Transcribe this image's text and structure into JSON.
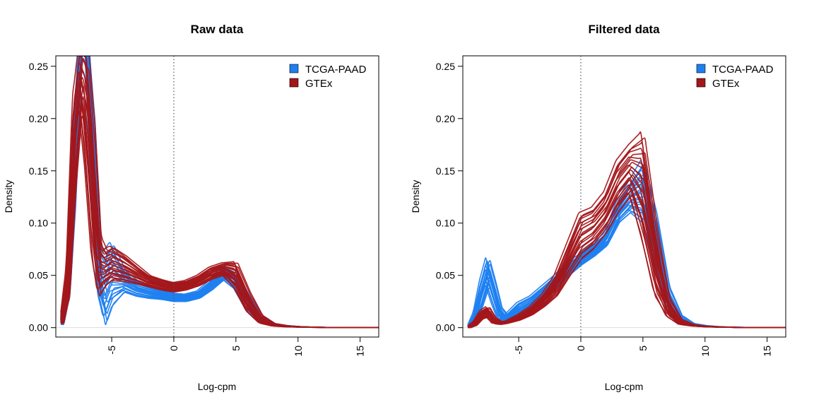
{
  "colors": {
    "tcga": "#1E7FF0",
    "gtex": "#A3161A",
    "zero_line": "#555555",
    "axis": "#000000"
  },
  "chart_data": [
    {
      "type": "line",
      "title": "Raw data",
      "xlabel": "Log-cpm",
      "ylabel": "Density",
      "xlim": [
        -9.5,
        16.5
      ],
      "ylim": [
        -0.009,
        0.26
      ],
      "xticks": [
        -5,
        0,
        5,
        10,
        15
      ],
      "xtick_labels": [
        "-5",
        "0",
        "5",
        "10",
        "15"
      ],
      "yticks": [
        0.0,
        0.05,
        0.1,
        0.15,
        0.2,
        0.25
      ],
      "ytick_labels": [
        "0.00",
        "0.05",
        "0.10",
        "0.15",
        "0.20",
        "0.25"
      ],
      "reference_line": {
        "x": 0,
        "style": "dotted"
      },
      "legend": {
        "position": "top-right",
        "entries": [
          "TCGA-PAAD",
          "GTEx"
        ]
      },
      "grid": false,
      "series": [
        {
          "name": "TCGA-PAAD",
          "color": "#1E7FF0",
          "x": [
            -9,
            -8.5,
            -8,
            -7.5,
            -7,
            -6.5,
            -6,
            -5.5,
            -5,
            -4,
            -3,
            -2,
            -1,
            0,
            1,
            2,
            3,
            4,
            5,
            6,
            7,
            8,
            9,
            10,
            11,
            12,
            13,
            14,
            15,
            16.5
          ],
          "y_low": [
            0.003,
            0.03,
            0.12,
            0.27,
            0.27,
            0.12,
            0.03,
            0.003,
            0.02,
            0.034,
            0.03,
            0.028,
            0.027,
            0.025,
            0.025,
            0.028,
            0.036,
            0.046,
            0.036,
            0.015,
            0.005,
            0.002,
            0.001,
            0.001,
            0.0005,
            0.0003,
            0.0002,
            0.0001,
            0.0,
            0.0
          ],
          "y_high": [
            0.006,
            0.05,
            0.18,
            0.27,
            0.27,
            0.2,
            0.08,
            0.073,
            0.082,
            0.055,
            0.045,
            0.04,
            0.036,
            0.033,
            0.032,
            0.035,
            0.045,
            0.058,
            0.052,
            0.03,
            0.012,
            0.004,
            0.002,
            0.001,
            0.0005,
            0.0003,
            0.0002,
            0.0001,
            0.0,
            0.0
          ]
        },
        {
          "name": "GTEx",
          "color": "#A3161A",
          "x": [
            -9,
            -8.5,
            -8,
            -7.5,
            -7,
            -6.5,
            -6,
            -5.5,
            -5,
            -4,
            -3,
            -2,
            -1,
            0,
            1,
            2,
            3,
            4,
            5,
            6,
            7,
            8,
            9,
            10,
            11,
            12,
            13,
            14,
            15,
            16.5
          ],
          "y_low": [
            0.004,
            0.03,
            0.13,
            0.205,
            0.14,
            0.06,
            0.03,
            0.04,
            0.045,
            0.044,
            0.042,
            0.039,
            0.036,
            0.034,
            0.036,
            0.04,
            0.046,
            0.05,
            0.036,
            0.014,
            0.004,
            0.0015,
            0.0008,
            0.0005,
            0.0003,
            0.0002,
            0.0001,
            0.0,
            0.0,
            0.0
          ],
          "y_high": [
            0.008,
            0.06,
            0.22,
            0.27,
            0.27,
            0.2,
            0.09,
            0.075,
            0.078,
            0.07,
            0.06,
            0.05,
            0.046,
            0.043,
            0.045,
            0.05,
            0.058,
            0.062,
            0.063,
            0.035,
            0.012,
            0.004,
            0.002,
            0.001,
            0.0005,
            0.0003,
            0.0001,
            0.0,
            0.0,
            0.0
          ]
        }
      ]
    },
    {
      "type": "line",
      "title": "Filtered data",
      "xlabel": "Log-cpm",
      "ylabel": "Density",
      "xlim": [
        -9.5,
        16.5
      ],
      "ylim": [
        -0.009,
        0.26
      ],
      "xticks": [
        -5,
        0,
        5,
        10,
        15
      ],
      "xtick_labels": [
        "-5",
        "0",
        "5",
        "10",
        "15"
      ],
      "yticks": [
        0.0,
        0.05,
        0.1,
        0.15,
        0.2,
        0.25
      ],
      "ytick_labels": [
        "0.00",
        "0.05",
        "0.10",
        "0.15",
        "0.20",
        "0.25"
      ],
      "reference_line": {
        "x": 0,
        "style": "dotted"
      },
      "legend": {
        "position": "top-right",
        "entries": [
          "TCGA-PAAD",
          "GTEx"
        ]
      },
      "grid": false,
      "series": [
        {
          "name": "TCGA-PAAD",
          "color": "#1E7FF0",
          "x": [
            -9,
            -8.5,
            -8,
            -7.5,
            -7,
            -6.5,
            -6,
            -5,
            -4,
            -3,
            -2,
            -1,
            0,
            1,
            2,
            3,
            4,
            5,
            6,
            7,
            8,
            9,
            10,
            11,
            12,
            13,
            14,
            15,
            16.5
          ],
          "y_low": [
            0.0,
            0.004,
            0.02,
            0.038,
            0.02,
            0.006,
            0.004,
            0.01,
            0.018,
            0.026,
            0.038,
            0.05,
            0.06,
            0.068,
            0.078,
            0.1,
            0.11,
            0.1,
            0.06,
            0.02,
            0.006,
            0.002,
            0.001,
            0.0005,
            0.0003,
            0.0002,
            0.0001,
            0.0,
            0.0
          ],
          "y_high": [
            0.001,
            0.015,
            0.045,
            0.067,
            0.045,
            0.02,
            0.012,
            0.024,
            0.03,
            0.04,
            0.05,
            0.062,
            0.07,
            0.08,
            0.09,
            0.12,
            0.14,
            0.16,
            0.11,
            0.04,
            0.012,
            0.004,
            0.002,
            0.001,
            0.0005,
            0.0003,
            0.0001,
            0.0,
            0.0
          ]
        },
        {
          "name": "GTEx",
          "color": "#A3161A",
          "x": [
            -9,
            -8.5,
            -8,
            -7.5,
            -7,
            -6.5,
            -6,
            -5,
            -4,
            -3,
            -2,
            -1,
            0,
            1,
            2,
            3,
            4,
            5,
            6,
            7,
            8,
            9,
            10,
            11,
            12,
            13,
            14,
            15,
            16.5
          ],
          "y_low": [
            0.0,
            0.002,
            0.008,
            0.01,
            0.004,
            0.003,
            0.004,
            0.007,
            0.012,
            0.02,
            0.03,
            0.048,
            0.065,
            0.075,
            0.09,
            0.11,
            0.125,
            0.08,
            0.03,
            0.01,
            0.003,
            0.0015,
            0.0008,
            0.0005,
            0.0003,
            0.0002,
            0.0001,
            0.0,
            0.0
          ],
          "y_high": [
            0.001,
            0.006,
            0.016,
            0.02,
            0.01,
            0.006,
            0.006,
            0.012,
            0.02,
            0.032,
            0.05,
            0.08,
            0.11,
            0.115,
            0.13,
            0.16,
            0.175,
            0.187,
            0.1,
            0.03,
            0.008,
            0.003,
            0.0015,
            0.0008,
            0.0004,
            0.0002,
            0.0001,
            0.0,
            0.0
          ]
        }
      ]
    }
  ]
}
